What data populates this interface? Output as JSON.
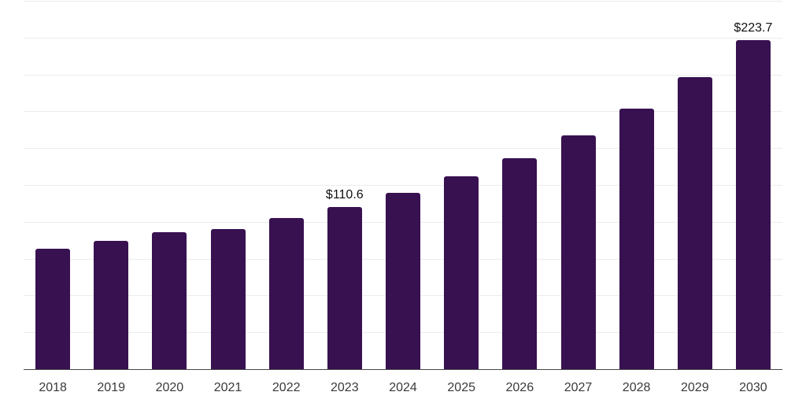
{
  "chart_data": {
    "type": "bar",
    "categories": [
      "2018",
      "2019",
      "2020",
      "2021",
      "2022",
      "2023",
      "2024",
      "2025",
      "2026",
      "2027",
      "2028",
      "2029",
      "2030"
    ],
    "values": [
      82.4,
      87.6,
      93.7,
      95.6,
      102.9,
      110.6,
      120.2,
      131.4,
      143.7,
      159.3,
      177.2,
      198.6,
      223.7
    ],
    "data_labels": [
      null,
      null,
      null,
      null,
      null,
      "$110.6",
      null,
      null,
      null,
      null,
      null,
      null,
      "$223.7"
    ],
    "xlabel": "",
    "ylabel": "",
    "ylim": [
      0,
      250
    ],
    "gridline_interval": 25,
    "grid": true,
    "legend": false,
    "colors": {
      "bar": "#381151",
      "gridline": "#ececec",
      "axis_line": "#474747",
      "x_tick_label": "#3a3a3a",
      "data_label": "#111111",
      "background": "#ffffff"
    }
  }
}
